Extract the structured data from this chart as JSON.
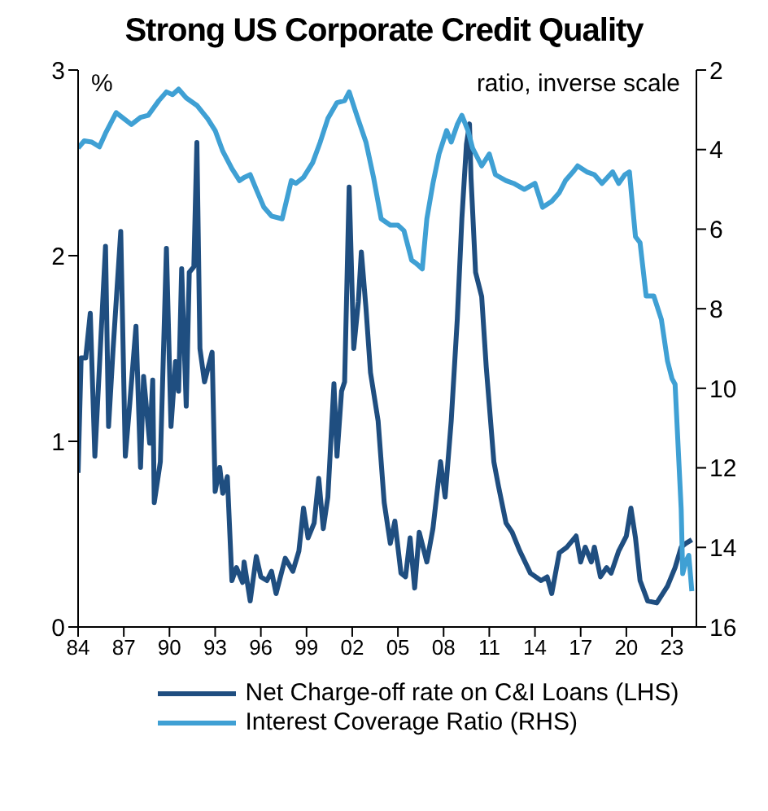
{
  "chart_data": {
    "type": "line",
    "title": "Strong US Corporate Credit Quality",
    "ylabel": "%",
    "y2label": "ratio, inverse scale",
    "xlim": [
      1984,
      2024.6
    ],
    "xticks": [
      {
        "value": 1984,
        "label": "84"
      },
      {
        "value": 1987,
        "label": "87"
      },
      {
        "value": 1990,
        "label": "90"
      },
      {
        "value": 1993,
        "label": "93"
      },
      {
        "value": 1996,
        "label": "96"
      },
      {
        "value": 1999,
        "label": "99"
      },
      {
        "value": 2002,
        "label": "02"
      },
      {
        "value": 2005,
        "label": "05"
      },
      {
        "value": 2008,
        "label": "08"
      },
      {
        "value": 2011,
        "label": "11"
      },
      {
        "value": 2014,
        "label": "14"
      },
      {
        "value": 2017,
        "label": "17"
      },
      {
        "value": 2020,
        "label": "20"
      },
      {
        "value": 2023,
        "label": "23"
      }
    ],
    "ylim": [
      0,
      3
    ],
    "yticks": [
      0,
      1,
      2,
      3
    ],
    "y2lim": [
      16,
      2
    ],
    "y2ticks": [
      2,
      4,
      6,
      8,
      10,
      12,
      14,
      16
    ],
    "legend": "bottom",
    "marker": "none",
    "line_style": "solid",
    "series": [
      {
        "name": "Net Charge-off rate on C&I Loans (LHS)",
        "color": "#1f4e80",
        "axis": "y",
        "x": [
          1984,
          1984.2,
          1984.5,
          1984.8,
          1985.1,
          1985.4,
          1985.8,
          1986.0,
          1986.3,
          1986.8,
          1987.1,
          1987.4,
          1987.8,
          1988.1,
          1988.3,
          1988.7,
          1988.9,
          1989.0,
          1989.4,
          1989.8,
          1990.1,
          1990.4,
          1990.6,
          1990.8,
          1991.1,
          1991.3,
          1991.6,
          1991.8,
          1992.0,
          1992.3,
          1992.8,
          1993.0,
          1993.3,
          1993.5,
          1993.8,
          1994.1,
          1994.4,
          1994.8,
          1994.9,
          1995.3,
          1995.7,
          1996.0,
          1996.4,
          1996.7,
          1997.0,
          1997.6,
          1998.1,
          1998.5,
          1998.8,
          1999.1,
          1999.5,
          1999.8,
          2000.1,
          2000.4,
          2000.8,
          2001.0,
          2001.3,
          2001.5,
          2001.8,
          2002.1,
          2002.4,
          2002.6,
          2002.9,
          2003.2,
          2003.7,
          2004.1,
          2004.5,
          2004.8,
          2005.2,
          2005.5,
          2005.8,
          2006.1,
          2006.4,
          2006.9,
          2007.3,
          2007.8,
          2008.1,
          2008.5,
          2008.9,
          2009.2,
          2009.5,
          2009.7,
          2009.8,
          2010.1,
          2010.5,
          2010.8,
          2011.3,
          2011.6,
          2012.1,
          2012.5,
          2013.0,
          2013.7,
          2014.4,
          2014.8,
          2015.1,
          2015.6,
          2016.1,
          2016.7,
          2017.0,
          2017.3,
          2017.7,
          2017.9,
          2018.3,
          2018.7,
          2019.0,
          2019.5,
          2020.0,
          2020.3,
          2020.6,
          2020.9,
          2021.4,
          2022.0,
          2022.7,
          2023.2,
          2023.6,
          2023.9,
          2024.3
        ],
        "values": [
          0.83,
          1.45,
          1.45,
          1.69,
          0.92,
          1.4,
          2.05,
          1.08,
          1.5,
          2.13,
          0.92,
          1.21,
          1.62,
          0.86,
          1.35,
          0.99,
          1.33,
          0.67,
          0.89,
          2.04,
          1.08,
          1.43,
          1.27,
          1.93,
          1.19,
          1.91,
          1.94,
          2.61,
          1.5,
          1.32,
          1.48,
          0.73,
          0.86,
          0.72,
          0.81,
          0.25,
          0.32,
          0.24,
          0.35,
          0.14,
          0.38,
          0.27,
          0.25,
          0.3,
          0.18,
          0.37,
          0.3,
          0.41,
          0.64,
          0.48,
          0.56,
          0.8,
          0.53,
          0.7,
          1.31,
          0.92,
          1.27,
          1.32,
          2.37,
          1.5,
          1.75,
          2.02,
          1.72,
          1.37,
          1.11,
          0.67,
          0.45,
          0.57,
          0.29,
          0.27,
          0.48,
          0.21,
          0.51,
          0.35,
          0.53,
          0.89,
          0.7,
          1.11,
          1.66,
          2.2,
          2.6,
          2.71,
          2.42,
          1.91,
          1.78,
          1.4,
          0.89,
          0.76,
          0.56,
          0.51,
          0.41,
          0.29,
          0.25,
          0.27,
          0.18,
          0.4,
          0.43,
          0.49,
          0.35,
          0.43,
          0.35,
          0.43,
          0.27,
          0.32,
          0.29,
          0.41,
          0.49,
          0.64,
          0.48,
          0.25,
          0.14,
          0.13,
          0.22,
          0.32,
          0.43,
          0.45,
          0.47
        ]
      },
      {
        "name": "Interest Coverage Ratio (RHS)",
        "color": "#3fa0d4",
        "axis": "y2",
        "x": [
          1984,
          1984.4,
          1984.9,
          1985.4,
          1985.8,
          1986.5,
          1987.0,
          1987.5,
          1988.1,
          1988.6,
          1989.3,
          1989.8,
          1990.2,
          1990.6,
          1991.1,
          1991.8,
          1992.5,
          1993.0,
          1993.5,
          1994.1,
          1994.6,
          1994.9,
          1995.3,
          1995.7,
          1996.2,
          1996.7,
          1997.4,
          1998.0,
          1998.3,
          1998.8,
          1999.4,
          1999.9,
          2000.4,
          2001.0,
          2001.5,
          2001.8,
          2002.3,
          2002.9,
          2003.4,
          2003.9,
          2004.5,
          2005.0,
          2005.4,
          2005.9,
          2006.2,
          2006.6,
          2006.9,
          2007.3,
          2007.7,
          2008.2,
          2008.5,
          2008.9,
          2009.2,
          2009.6,
          2009.9,
          2010.5,
          2011.0,
          2011.4,
          2012.1,
          2012.6,
          2013.3,
          2014.0,
          2014.5,
          2015.1,
          2015.6,
          2016.0,
          2016.5,
          2016.8,
          2017.4,
          2017.9,
          2018.4,
          2019.1,
          2019.5,
          2019.9,
          2020.2,
          2020.6,
          2020.9,
          2021.3,
          2021.8,
          2022.3,
          2022.7,
          2023.0,
          2023.2,
          2023.6,
          2023.7,
          2023.9,
          2024.1,
          2024.3
        ],
        "values": [
          3.96,
          3.78,
          3.81,
          3.93,
          3.59,
          3.07,
          3.22,
          3.37,
          3.19,
          3.14,
          2.77,
          2.55,
          2.62,
          2.48,
          2.7,
          2.89,
          3.22,
          3.52,
          4.04,
          4.48,
          4.78,
          4.7,
          4.63,
          5.0,
          5.45,
          5.67,
          5.74,
          4.78,
          4.85,
          4.7,
          4.33,
          3.81,
          3.22,
          2.82,
          2.77,
          2.55,
          3.14,
          3.81,
          4.7,
          5.74,
          5.9,
          5.9,
          6.04,
          6.78,
          6.86,
          7.0,
          5.74,
          4.85,
          4.11,
          3.52,
          3.81,
          3.37,
          3.14,
          3.52,
          3.96,
          4.41,
          4.11,
          4.63,
          4.78,
          4.85,
          5.0,
          4.85,
          5.45,
          5.3,
          5.08,
          4.78,
          4.56,
          4.41,
          4.56,
          4.63,
          4.85,
          4.56,
          4.85,
          4.63,
          4.56,
          6.19,
          6.34,
          7.68,
          7.68,
          8.27,
          9.31,
          9.76,
          9.9,
          13.03,
          14.66,
          14.36,
          14.2,
          15.1
        ]
      }
    ]
  }
}
